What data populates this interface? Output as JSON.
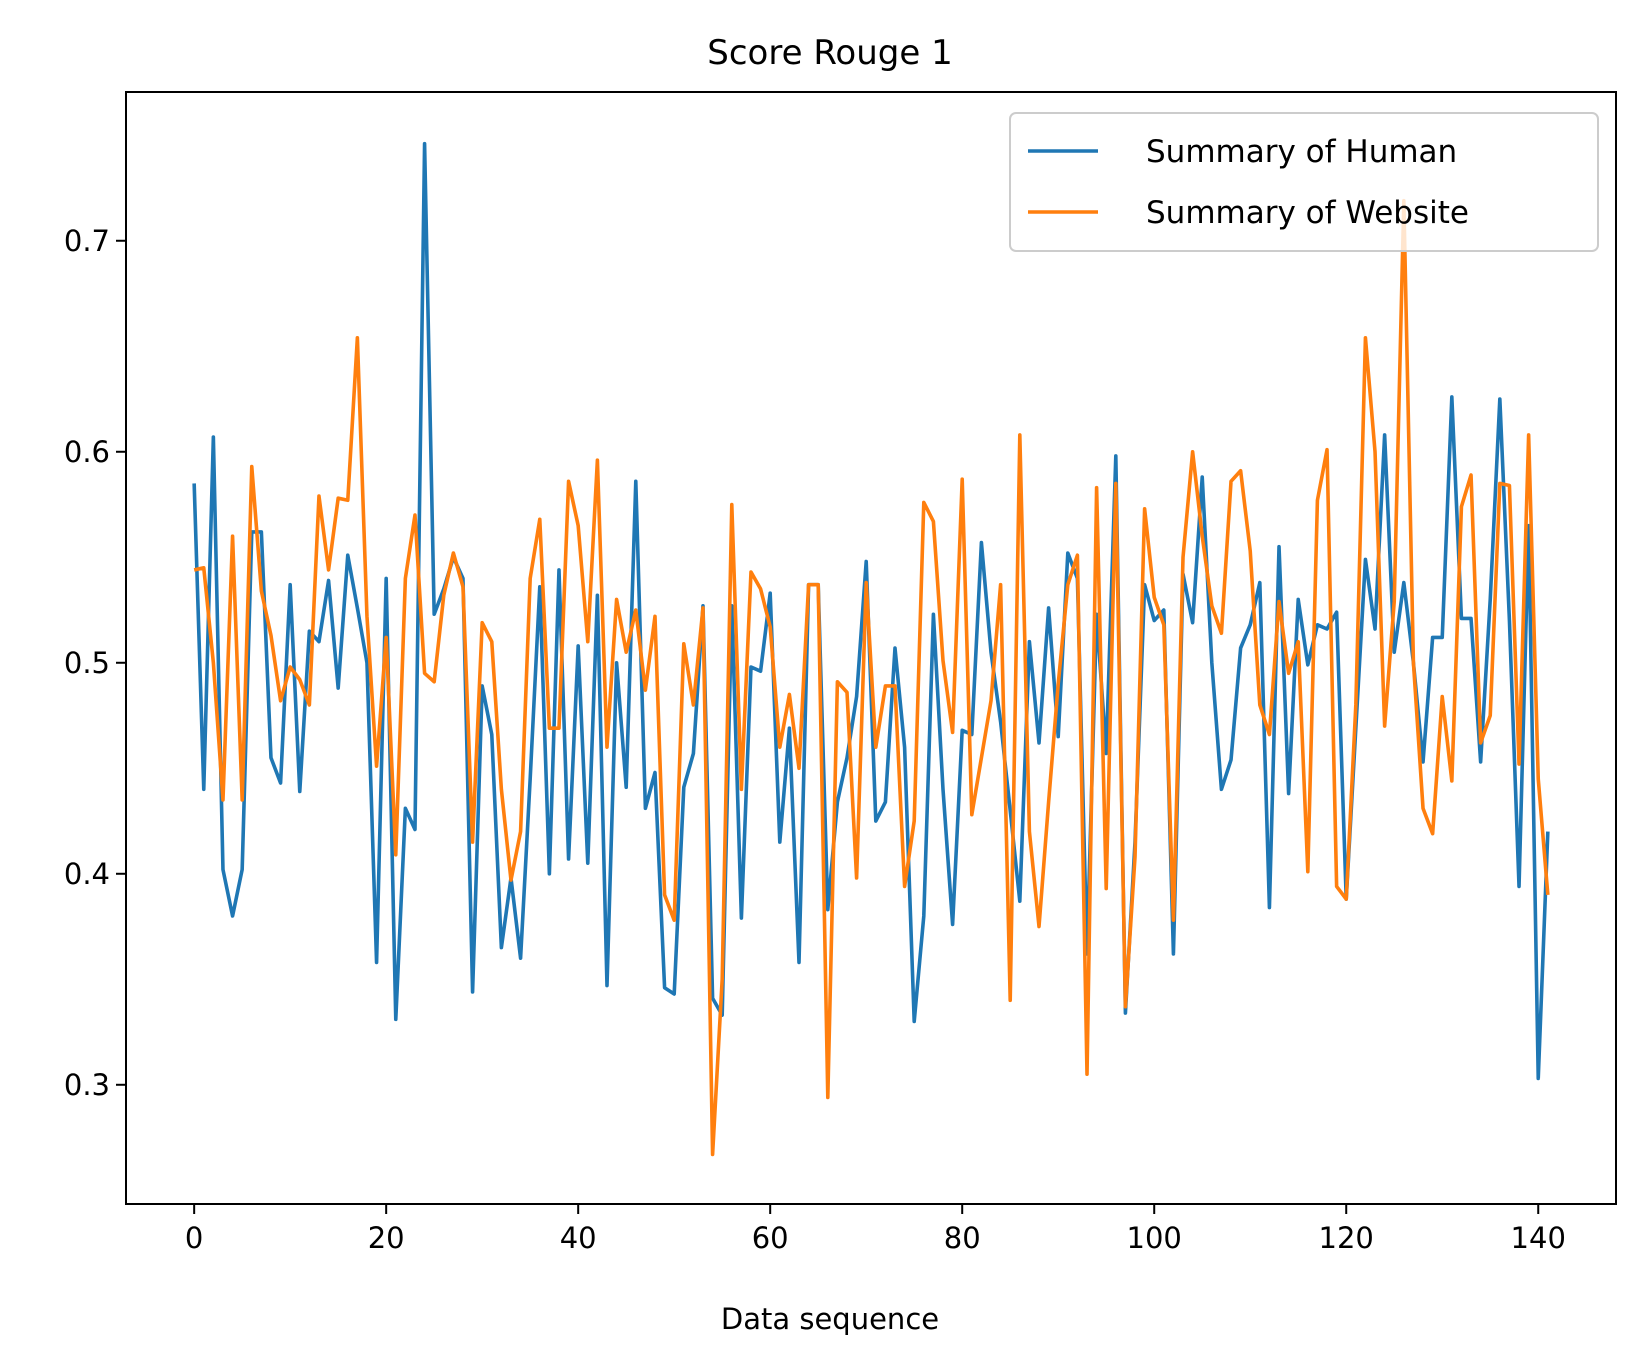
{
  "chart_data": {
    "type": "line",
    "title": "Score Rouge 1",
    "xlabel": "Data sequence",
    "ylabel": "",
    "xlim": [
      -7.1,
      148.1
    ],
    "ylim": [
      0.2435,
      0.7705
    ],
    "xticks": [
      0,
      20,
      40,
      60,
      80,
      100,
      120,
      140
    ],
    "xtick_labels": [
      "0",
      "20",
      "40",
      "60",
      "80",
      "100",
      "120",
      "140"
    ],
    "yticks": [
      0.3,
      0.4,
      0.5,
      0.6,
      0.7
    ],
    "ytick_labels": [
      "0.3",
      "0.4",
      "0.5",
      "0.6",
      "0.7"
    ],
    "grid": false,
    "legend_position": "top-right",
    "series": [
      {
        "name": "Summary of Human",
        "color": "#1f77b4",
        "values": [
          0.585,
          0.44,
          0.607,
          0.402,
          0.38,
          0.402,
          0.562,
          0.562,
          0.455,
          0.443,
          0.537,
          0.439,
          0.515,
          0.51,
          0.539,
          0.488,
          0.551,
          0.526,
          0.5,
          0.358,
          0.54,
          0.331,
          0.431,
          0.421,
          0.746,
          0.523,
          0.535,
          0.55,
          0.54,
          0.344,
          0.489,
          0.466,
          0.365,
          0.398,
          0.36,
          0.445,
          0.536,
          0.4,
          0.544,
          0.407,
          0.508,
          0.405,
          0.532,
          0.347,
          0.5,
          0.441,
          0.586,
          0.431,
          0.448,
          0.346,
          0.343,
          0.441,
          0.457,
          0.527,
          0.341,
          0.333,
          0.527,
          0.379,
          0.498,
          0.496,
          0.533,
          0.415,
          0.469,
          0.358,
          0.537,
          0.537,
          0.383,
          0.434,
          0.455,
          0.484,
          0.548,
          0.425,
          0.434,
          0.507,
          0.46,
          0.33,
          0.38,
          0.523,
          0.44,
          0.376,
          0.468,
          0.466,
          0.557,
          0.505,
          0.472,
          0.43,
          0.387,
          0.51,
          0.462,
          0.526,
          0.465,
          0.552,
          0.54,
          0.362,
          0.523,
          0.457,
          0.598,
          0.334,
          0.415,
          0.537,
          0.52,
          0.525,
          0.362,
          0.542,
          0.519,
          0.588,
          0.5,
          0.44,
          0.454,
          0.507,
          0.518,
          0.538,
          0.384,
          0.555,
          0.438,
          0.53,
          0.499,
          0.518,
          0.516,
          0.524,
          0.388,
          0.469,
          0.549,
          0.516,
          0.608,
          0.505,
          0.538,
          0.5,
          0.453,
          0.512,
          0.512,
          0.626,
          0.521,
          0.521,
          0.453,
          0.53,
          0.625,
          0.52,
          0.394,
          0.565,
          0.303,
          0.42
        ]
      },
      {
        "name": "Summary of Website",
        "color": "#ff7f0e",
        "values": [
          0.544,
          0.545,
          0.5,
          0.435,
          0.56,
          0.435,
          0.593,
          0.534,
          0.513,
          0.482,
          0.498,
          0.492,
          0.48,
          0.579,
          0.544,
          0.578,
          0.577,
          0.654,
          0.522,
          0.451,
          0.512,
          0.409,
          0.54,
          0.57,
          0.495,
          0.491,
          0.532,
          0.552,
          0.536,
          0.415,
          0.519,
          0.51,
          0.44,
          0.397,
          0.42,
          0.54,
          0.568,
          0.469,
          0.469,
          0.586,
          0.565,
          0.51,
          0.596,
          0.46,
          0.53,
          0.505,
          0.525,
          0.487,
          0.522,
          0.39,
          0.378,
          0.509,
          0.48,
          0.526,
          0.267,
          0.35,
          0.575,
          0.44,
          0.543,
          0.535,
          0.517,
          0.46,
          0.485,
          0.45,
          0.537,
          0.537,
          0.294,
          0.491,
          0.486,
          0.398,
          0.538,
          0.46,
          0.489,
          0.489,
          0.394,
          0.425,
          0.576,
          0.567,
          0.501,
          0.467,
          0.587,
          0.428,
          0.455,
          0.482,
          0.537,
          0.34,
          0.608,
          0.42,
          0.375,
          0.434,
          0.49,
          0.537,
          0.551,
          0.305,
          0.583,
          0.393,
          0.585,
          0.337,
          0.408,
          0.573,
          0.531,
          0.518,
          0.378,
          0.55,
          0.6,
          0.56,
          0.527,
          0.514,
          0.586,
          0.591,
          0.553,
          0.48,
          0.466,
          0.529,
          0.495,
          0.51,
          0.401,
          0.577,
          0.601,
          0.394,
          0.388,
          0.48,
          0.654,
          0.6,
          0.47,
          0.529,
          0.719,
          0.5,
          0.431,
          0.419,
          0.484,
          0.444,
          0.574,
          0.589,
          0.462,
          0.475,
          0.585,
          0.584,
          0.452,
          0.608,
          0.445,
          0.39
        ]
      }
    ]
  }
}
